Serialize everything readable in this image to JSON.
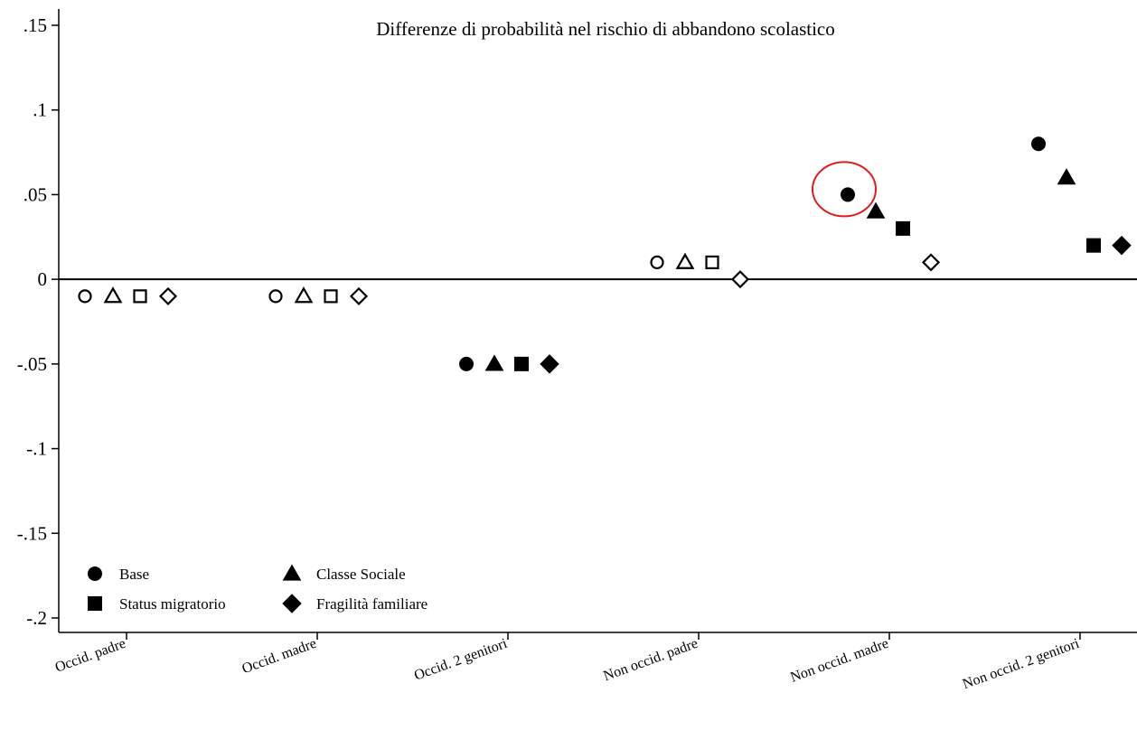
{
  "chart_data": {
    "type": "scatter",
    "title": "Differenze di probabilità nel rischio di abbandono scolastico",
    "xlabel": "",
    "ylabel": "",
    "categories": [
      "Occid. padre",
      "Occid. madre",
      "Occid. 2 genitori",
      "Non occid. padre",
      "Non occid. madre",
      "Non occid. 2 genitori"
    ],
    "ylim": [
      -0.2,
      0.15
    ],
    "yticks": [
      {
        "value": 0.15,
        "label": ".15"
      },
      {
        "value": 0.1,
        "label": ".1"
      },
      {
        "value": 0.05,
        "label": ".05"
      },
      {
        "value": 0,
        "label": "0"
      },
      {
        "value": -0.05,
        "label": "-.05"
      },
      {
        "value": -0.1,
        "label": "-.1"
      },
      {
        "value": -0.15,
        "label": "-.15"
      },
      {
        "value": -0.2,
        "label": "-.2"
      }
    ],
    "reference_line": 0,
    "grid": false,
    "legend_position": "bottom-left",
    "marker_fill": {
      "filled_categories": [
        "Occid. 2 genitori",
        "Non occid. madre",
        "Non occid. 2 genitori"
      ],
      "hollow_categories": [
        "Occid. padre",
        "Occid. madre",
        "Non occid. padre"
      ],
      "note_exception": "Fragilità familiare marker is hollow for Non occid. madre"
    },
    "series": [
      {
        "name": "Base",
        "marker": "circle",
        "values": [
          -0.01,
          -0.01,
          -0.05,
          0.01,
          0.05,
          0.08
        ],
        "filled": [
          false,
          false,
          true,
          false,
          true,
          true
        ]
      },
      {
        "name": "Classe Sociale",
        "marker": "triangle",
        "values": [
          -0.01,
          -0.01,
          -0.05,
          0.01,
          0.04,
          0.06
        ],
        "filled": [
          false,
          false,
          true,
          false,
          true,
          true
        ]
      },
      {
        "name": "Status migratorio",
        "marker": "square",
        "values": [
          -0.01,
          -0.01,
          -0.05,
          0.01,
          0.03,
          0.02
        ],
        "filled": [
          false,
          false,
          true,
          false,
          true,
          true
        ]
      },
      {
        "name": "Fragilità familiare",
        "marker": "diamond",
        "values": [
          -0.01,
          -0.01,
          -0.05,
          0.0,
          0.01,
          0.02
        ],
        "filled": [
          false,
          false,
          true,
          false,
          false,
          true
        ]
      }
    ],
    "annotations": [
      {
        "type": "circle-highlight",
        "color": "#e31a1c",
        "category": "Non occid. madre",
        "series": "Base"
      }
    ]
  }
}
